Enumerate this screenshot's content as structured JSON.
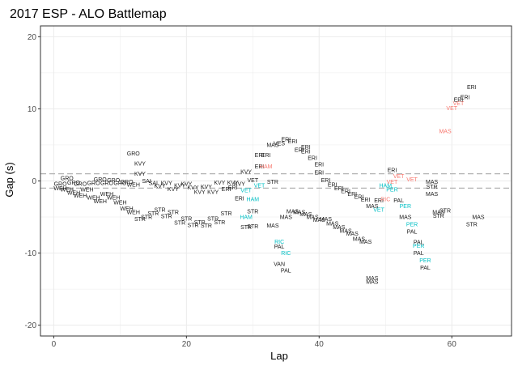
{
  "chart_data": {
    "type": "scatter",
    "title": "2017 ESP - ALO Battlemap",
    "xlabel": "Lap",
    "ylabel": "Gap (s)",
    "xlim": [
      -2,
      69
    ],
    "ylim": [
      -21.5,
      21.5
    ],
    "x_ticks": [
      0,
      20,
      40,
      60
    ],
    "y_ticks": [
      -20,
      -10,
      0,
      10,
      20
    ],
    "grid": true,
    "reference_lines": [
      1,
      -1
    ],
    "colors": {
      "default": "#1a1a1a",
      "red": "#f8766d",
      "teal": "#00bfc4",
      "refline": "#b3b3b3",
      "grid": "#ebebeb",
      "panel_border": "#333333"
    },
    "points": [
      {
        "x": 1,
        "y": -0.4,
        "label": "GRO",
        "color": "default"
      },
      {
        "x": 1,
        "y": -1.0,
        "label": "WEH",
        "color": "default"
      },
      {
        "x": 2,
        "y": 0.4,
        "label": "GRO",
        "color": "default"
      },
      {
        "x": 2,
        "y": -1.2,
        "label": "WEH",
        "color": "default"
      },
      {
        "x": 3,
        "y": -1.6,
        "label": "WEH",
        "color": "default"
      },
      {
        "x": 3,
        "y": -0.2,
        "label": "GRO",
        "color": "default"
      },
      {
        "x": 4,
        "y": -2.0,
        "label": "WEH",
        "color": "default"
      },
      {
        "x": 4,
        "y": -0.4,
        "label": "GRO",
        "color": "default"
      },
      {
        "x": 5,
        "y": -1.2,
        "label": "WEH",
        "color": "default"
      },
      {
        "x": 6,
        "y": -0.3,
        "label": "GRO",
        "color": "default"
      },
      {
        "x": 6,
        "y": -2.3,
        "label": "WEH",
        "color": "default"
      },
      {
        "x": 7,
        "y": 0.2,
        "label": "GRO",
        "color": "default"
      },
      {
        "x": 7,
        "y": -2.8,
        "label": "WEH",
        "color": "default"
      },
      {
        "x": 8,
        "y": -0.3,
        "label": "GRO",
        "color": "default"
      },
      {
        "x": 8,
        "y": -1.8,
        "label": "WEH",
        "color": "default"
      },
      {
        "x": 9,
        "y": 0.1,
        "label": "GRO",
        "color": "default"
      },
      {
        "x": 9,
        "y": -2.3,
        "label": "WEH",
        "color": "default"
      },
      {
        "x": 10,
        "y": -0.3,
        "label": "GRO",
        "color": "default"
      },
      {
        "x": 10,
        "y": -3.0,
        "label": "WEH",
        "color": "default"
      },
      {
        "x": 11,
        "y": -0.1,
        "label": "GRO",
        "color": "default"
      },
      {
        "x": 11,
        "y": -3.8,
        "label": "WEH",
        "color": "default"
      },
      {
        "x": 12,
        "y": 3.8,
        "label": "GRO",
        "color": "default"
      },
      {
        "x": 12,
        "y": -4.3,
        "label": "WEH",
        "color": "default"
      },
      {
        "x": 12,
        "y": -0.5,
        "label": "WEH",
        "color": "default"
      },
      {
        "x": 13,
        "y": 1.0,
        "label": "KVY",
        "color": "default"
      },
      {
        "x": 13,
        "y": -5.3,
        "label": "STR",
        "color": "default"
      },
      {
        "x": 13,
        "y": 2.4,
        "label": "KVY",
        "color": "default"
      },
      {
        "x": 14,
        "y": -5.0,
        "label": "STR",
        "color": "default"
      },
      {
        "x": 14,
        "y": 0.0,
        "label": "SAI",
        "color": "default"
      },
      {
        "x": 15,
        "y": -4.5,
        "label": "STR",
        "color": "default"
      },
      {
        "x": 15,
        "y": -0.3,
        "label": "SAI",
        "color": "default"
      },
      {
        "x": 16,
        "y": -4.0,
        "label": "STR",
        "color": "default"
      },
      {
        "x": 16,
        "y": -0.7,
        "label": "KVY",
        "color": "default"
      },
      {
        "x": 17,
        "y": -4.9,
        "label": "STR",
        "color": "default"
      },
      {
        "x": 17,
        "y": -0.3,
        "label": "KVY",
        "color": "default"
      },
      {
        "x": 18,
        "y": -4.3,
        "label": "STR",
        "color": "default"
      },
      {
        "x": 18,
        "y": -1.1,
        "label": "KVY",
        "color": "default"
      },
      {
        "x": 19,
        "y": -5.8,
        "label": "STR",
        "color": "default"
      },
      {
        "x": 19,
        "y": -0.6,
        "label": "KVY",
        "color": "default"
      },
      {
        "x": 20,
        "y": -5.2,
        "label": "STR",
        "color": "default"
      },
      {
        "x": 20,
        "y": -0.4,
        "label": "KVY",
        "color": "default"
      },
      {
        "x": 21,
        "y": -6.1,
        "label": "STR",
        "color": "default"
      },
      {
        "x": 21,
        "y": -0.9,
        "label": "KVY",
        "color": "default"
      },
      {
        "x": 22,
        "y": -5.7,
        "label": "STR",
        "color": "default"
      },
      {
        "x": 22,
        "y": -1.5,
        "label": "KVY",
        "color": "default"
      },
      {
        "x": 23,
        "y": -6.2,
        "label": "STR",
        "color": "default"
      },
      {
        "x": 23,
        "y": -0.8,
        "label": "KVY",
        "color": "default"
      },
      {
        "x": 24,
        "y": -5.2,
        "label": "STR",
        "color": "default"
      },
      {
        "x": 24,
        "y": -1.5,
        "label": "KVY",
        "color": "default"
      },
      {
        "x": 25,
        "y": -5.7,
        "label": "STR",
        "color": "default"
      },
      {
        "x": 25,
        "y": -0.2,
        "label": "KVY",
        "color": "default"
      },
      {
        "x": 26,
        "y": -4.5,
        "label": "STR",
        "color": "default"
      },
      {
        "x": 26,
        "y": -1.1,
        "label": "ERI",
        "color": "default"
      },
      {
        "x": 27,
        "y": -0.9,
        "label": "ERI",
        "color": "default"
      },
      {
        "x": 27,
        "y": -0.2,
        "label": "KVY",
        "color": "default"
      },
      {
        "x": 28,
        "y": -2.4,
        "label": "ERI",
        "color": "default"
      },
      {
        "x": 28,
        "y": -0.4,
        "label": "KVY",
        "color": "default"
      },
      {
        "x": 29,
        "y": 1.3,
        "label": "KVY",
        "color": "default"
      },
      {
        "x": 29,
        "y": -1.3,
        "label": "VET",
        "color": "teal"
      },
      {
        "x": 29,
        "y": -5.0,
        "label": "HAM",
        "color": "teal"
      },
      {
        "x": 29,
        "y": -6.4,
        "label": "STR",
        "color": "default"
      },
      {
        "x": 30,
        "y": 0.1,
        "label": "VET",
        "color": "default"
      },
      {
        "x": 30,
        "y": -2.5,
        "label": "HAM",
        "color": "teal"
      },
      {
        "x": 30,
        "y": -4.2,
        "label": "STR",
        "color": "default"
      },
      {
        "x": 30,
        "y": -6.3,
        "label": "STR",
        "color": "default"
      },
      {
        "x": 31,
        "y": 2.0,
        "label": "ERI",
        "color": "default"
      },
      {
        "x": 31,
        "y": -0.6,
        "label": "VET",
        "color": "teal"
      },
      {
        "x": 31,
        "y": 3.6,
        "label": "ERI",
        "color": "default"
      },
      {
        "x": 32,
        "y": 2.0,
        "label": "HAM",
        "color": "red"
      },
      {
        "x": 32,
        "y": 3.6,
        "label": "ERI",
        "color": "default"
      },
      {
        "x": 33,
        "y": -0.1,
        "label": "STR",
        "color": "default"
      },
      {
        "x": 33,
        "y": 5.0,
        "label": "MAS",
        "color": "default"
      },
      {
        "x": 33,
        "y": -6.2,
        "label": "MAS",
        "color": "default"
      },
      {
        "x": 34,
        "y": 5.2,
        "label": "VES",
        "color": "default"
      },
      {
        "x": 34,
        "y": -8.4,
        "label": "RIC",
        "color": "teal"
      },
      {
        "x": 34,
        "y": -9.1,
        "label": "PAL",
        "color": "default"
      },
      {
        "x": 34,
        "y": -11.5,
        "label": "VAN",
        "color": "default"
      },
      {
        "x": 35,
        "y": -5.0,
        "label": "MAS",
        "color": "default"
      },
      {
        "x": 35,
        "y": -10.0,
        "label": "RIC",
        "color": "teal"
      },
      {
        "x": 35,
        "y": -12.4,
        "label": "PAL",
        "color": "default"
      },
      {
        "x": 35,
        "y": 5.8,
        "label": "ERI",
        "color": "default"
      },
      {
        "x": 36,
        "y": -4.2,
        "label": "MAS",
        "color": "default"
      },
      {
        "x": 36,
        "y": 5.5,
        "label": "ERI",
        "color": "default"
      },
      {
        "x": 37,
        "y": -4.3,
        "label": "MAS",
        "color": "default"
      },
      {
        "x": 37,
        "y": 4.3,
        "label": "ERI",
        "color": "default"
      },
      {
        "x": 38,
        "y": -4.6,
        "label": "MAS",
        "color": "default"
      },
      {
        "x": 38,
        "y": 4.1,
        "label": "ERI",
        "color": "default"
      },
      {
        "x": 38,
        "y": 4.7,
        "label": "ERI",
        "color": "default"
      },
      {
        "x": 39,
        "y": -5.0,
        "label": "MAS",
        "color": "default"
      },
      {
        "x": 39,
        "y": 3.2,
        "label": "ERI",
        "color": "default"
      },
      {
        "x": 40,
        "y": -5.4,
        "label": "MAS",
        "color": "default"
      },
      {
        "x": 40,
        "y": 2.3,
        "label": "ERI",
        "color": "default"
      },
      {
        "x": 40,
        "y": 1.2,
        "label": "ERI",
        "color": "default"
      },
      {
        "x": 41,
        "y": -5.3,
        "label": "MAS",
        "color": "default"
      },
      {
        "x": 41,
        "y": 0.1,
        "label": "ERI",
        "color": "default"
      },
      {
        "x": 42,
        "y": -5.9,
        "label": "MAS",
        "color": "default"
      },
      {
        "x": 42,
        "y": -0.5,
        "label": "ERI",
        "color": "default"
      },
      {
        "x": 43,
        "y": -6.4,
        "label": "MAS",
        "color": "default"
      },
      {
        "x": 43,
        "y": -1.0,
        "label": "ERI",
        "color": "default"
      },
      {
        "x": 44,
        "y": -6.9,
        "label": "MAS",
        "color": "default"
      },
      {
        "x": 44,
        "y": -1.4,
        "label": "ERI",
        "color": "default"
      },
      {
        "x": 45,
        "y": -7.3,
        "label": "MAS",
        "color": "default"
      },
      {
        "x": 45,
        "y": -1.8,
        "label": "ERI",
        "color": "default"
      },
      {
        "x": 46,
        "y": -8.0,
        "label": "MAS",
        "color": "default"
      },
      {
        "x": 46,
        "y": -2.2,
        "label": "ERI",
        "color": "default"
      },
      {
        "x": 47,
        "y": -8.4,
        "label": "MAS",
        "color": "default"
      },
      {
        "x": 47,
        "y": -2.6,
        "label": "ERI",
        "color": "default"
      },
      {
        "x": 48,
        "y": -3.5,
        "label": "MAS",
        "color": "default"
      },
      {
        "x": 48,
        "y": -13.5,
        "label": "MAS",
        "color": "default"
      },
      {
        "x": 48,
        "y": -14.0,
        "label": "MAS",
        "color": "default"
      },
      {
        "x": 49,
        "y": -4.0,
        "label": "VET",
        "color": "teal"
      },
      {
        "x": 49,
        "y": -2.7,
        "label": "ERI",
        "color": "default"
      },
      {
        "x": 50,
        "y": -2.5,
        "label": "RIC",
        "color": "red"
      },
      {
        "x": 50,
        "y": -0.6,
        "label": "HAM",
        "color": "teal"
      },
      {
        "x": 51,
        "y": -0.1,
        "label": "VET",
        "color": "red"
      },
      {
        "x": 51,
        "y": 1.5,
        "label": "ERI",
        "color": "default"
      },
      {
        "x": 51,
        "y": -1.2,
        "label": "PER",
        "color": "teal"
      },
      {
        "x": 52,
        "y": 0.7,
        "label": "VET",
        "color": "red"
      },
      {
        "x": 52,
        "y": -2.7,
        "label": "PAL",
        "color": "default"
      },
      {
        "x": 53,
        "y": -3.5,
        "label": "PER",
        "color": "teal"
      },
      {
        "x": 53,
        "y": -5.0,
        "label": "MAS",
        "color": "default"
      },
      {
        "x": 54,
        "y": -6.0,
        "label": "PER",
        "color": "teal"
      },
      {
        "x": 54,
        "y": -7.0,
        "label": "PAL",
        "color": "default"
      },
      {
        "x": 54,
        "y": 0.2,
        "label": "VET",
        "color": "red"
      },
      {
        "x": 55,
        "y": -9.0,
        "label": "PER",
        "color": "teal"
      },
      {
        "x": 55,
        "y": -10.0,
        "label": "PAL",
        "color": "default"
      },
      {
        "x": 55,
        "y": -8.5,
        "label": "PAL",
        "color": "default"
      },
      {
        "x": 56,
        "y": -11.0,
        "label": "PER",
        "color": "teal"
      },
      {
        "x": 56,
        "y": -12.0,
        "label": "PAL",
        "color": "default"
      },
      {
        "x": 57,
        "y": -0.8,
        "label": "STR",
        "color": "default"
      },
      {
        "x": 57,
        "y": -1.8,
        "label": "MAS",
        "color": "default"
      },
      {
        "x": 57,
        "y": -0.1,
        "label": "MAS",
        "color": "default"
      },
      {
        "x": 58,
        "y": -4.3,
        "label": "MAS",
        "color": "default"
      },
      {
        "x": 58,
        "y": -4.8,
        "label": "STR",
        "color": "default"
      },
      {
        "x": 59,
        "y": -4.1,
        "label": "STR",
        "color": "default"
      },
      {
        "x": 59,
        "y": 6.9,
        "label": "MAS",
        "color": "red"
      },
      {
        "x": 60,
        "y": 10.1,
        "label": "VET",
        "color": "red"
      },
      {
        "x": 61,
        "y": 10.8,
        "label": "VET",
        "color": "red"
      },
      {
        "x": 61,
        "y": 11.3,
        "label": "ERI",
        "color": "default"
      },
      {
        "x": 62,
        "y": 11.6,
        "label": "ERI",
        "color": "default"
      },
      {
        "x": 63,
        "y": 13.0,
        "label": "ERI",
        "color": "default"
      },
      {
        "x": 63,
        "y": -6.0,
        "label": "STR",
        "color": "default"
      },
      {
        "x": 64,
        "y": -5.0,
        "label": "MAS",
        "color": "default"
      }
    ]
  }
}
